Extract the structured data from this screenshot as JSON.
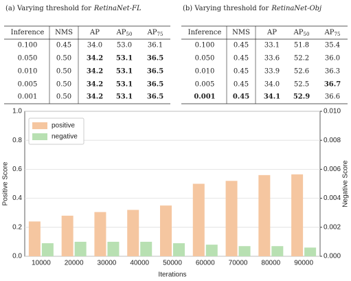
{
  "tables": [
    {
      "caption": "(a) Varying threshold for",
      "method": "RetinaNet-FL",
      "header": [
        {
          "text": "Inference"
        },
        {
          "text": "NMS"
        },
        {
          "text": "AP"
        },
        {
          "text": "AP",
          "sub": "50"
        },
        {
          "text": "AP",
          "sub": "75"
        }
      ],
      "rows": [
        [
          "0.100",
          "0.45",
          "34.0",
          "53.0",
          "36.1"
        ],
        [
          "0.050",
          "0.50",
          "34.2",
          "53.1",
          "36.5"
        ],
        [
          "0.010",
          "0.50",
          "34.2",
          "53.1",
          "36.5"
        ],
        [
          "0.005",
          "0.50",
          "34.2",
          "53.1",
          "36.5"
        ],
        [
          "0.001",
          "0.50",
          "34.2",
          "53.1",
          "36.5"
        ]
      ],
      "bold": [
        [
          1,
          2
        ],
        [
          1,
          3
        ],
        [
          1,
          4
        ],
        [
          2,
          2
        ],
        [
          2,
          3
        ],
        [
          2,
          4
        ],
        [
          3,
          2
        ],
        [
          3,
          3
        ],
        [
          3,
          4
        ],
        [
          4,
          2
        ],
        [
          4,
          3
        ],
        [
          4,
          4
        ]
      ]
    },
    {
      "caption": "(b) Varying threshold for",
      "method": "RetinaNet-Obj",
      "header": [
        {
          "text": "Inference"
        },
        {
          "text": "NMS"
        },
        {
          "text": "AP"
        },
        {
          "text": "AP",
          "sub": "50"
        },
        {
          "text": "AP",
          "sub": "75"
        }
      ],
      "rows": [
        [
          "0.100",
          "0.45",
          "33.1",
          "51.8",
          "35.4"
        ],
        [
          "0.050",
          "0.45",
          "33.6",
          "52.2",
          "36.0"
        ],
        [
          "0.010",
          "0.45",
          "33.9",
          "52.6",
          "36.3"
        ],
        [
          "0.005",
          "0.45",
          "34.0",
          "52.5",
          "36.7"
        ],
        [
          "0.001",
          "0.45",
          "34.1",
          "52.9",
          "36.6"
        ]
      ],
      "bold": [
        [
          3,
          4
        ],
        [
          4,
          0
        ],
        [
          4,
          1
        ],
        [
          4,
          2
        ],
        [
          4,
          3
        ]
      ]
    }
  ],
  "chart_data": {
    "type": "bar",
    "x_label": "Iterations",
    "y_label": "Positive Score",
    "y2_label": "Negative Score",
    "categories": [
      "10000",
      "20000",
      "30000",
      "40000",
      "50000",
      "60000",
      "70000",
      "80000",
      "90000"
    ],
    "series": [
      {
        "name": "positive",
        "color": "#f5c6a0",
        "values": [
          0.24,
          0.28,
          0.305,
          0.32,
          0.35,
          0.5,
          0.52,
          0.56,
          0.565
        ]
      },
      {
        "name": "negative",
        "color": "#b8e0b2",
        "axis": "y2",
        "values": [
          0.0009,
          0.001,
          0.001,
          0.001,
          0.0009,
          0.0008,
          0.0007,
          0.0007,
          0.0006
        ]
      }
    ],
    "ylim": [
      0,
      1.0
    ],
    "yticks": [
      {
        "value": 0,
        "label": "0.0"
      },
      0.2,
      0.4,
      0.6,
      0.8,
      {
        "value": 1.0,
        "label": "1.0"
      }
    ],
    "y2lim": [
      0,
      0.01
    ],
    "y2ticks": [
      {
        "value": 0,
        "label": "0.000"
      },
      {
        "value": 0.002,
        "label": "0.002"
      },
      {
        "value": 0.004,
        "label": "0.004"
      },
      {
        "value": 0.006,
        "label": "0.006"
      },
      {
        "value": 0.008,
        "label": "0.008"
      },
      {
        "value": 0.01,
        "label": "0.010"
      }
    ],
    "grid": true,
    "legend": "upper-left"
  }
}
